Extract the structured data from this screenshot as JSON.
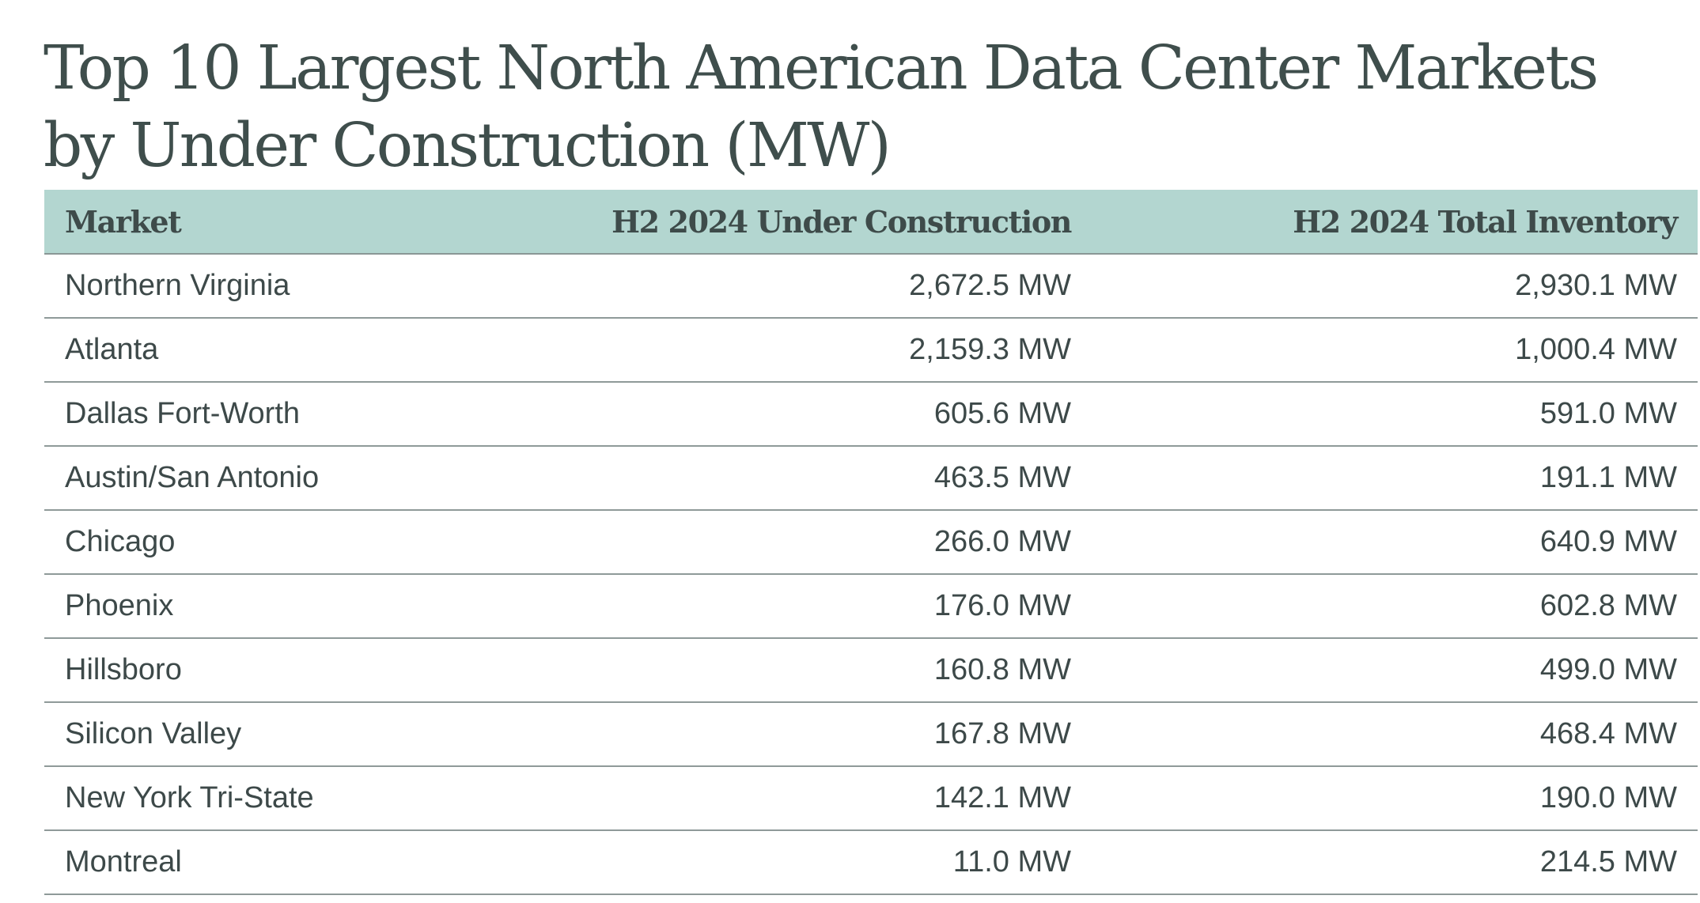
{
  "chart_data": {
    "type": "table",
    "title_lines": [
      "Top 10 Largest North American Data Center Markets",
      "by Under Construction (MW)"
    ],
    "columns": [
      "Market",
      "H2 2024 Under Construction",
      "H2 2024 Total Inventory"
    ],
    "rows": [
      {
        "market": "Northern Virginia",
        "under_construction": "2,672.5 MW",
        "total_inventory": "2,930.1 MW"
      },
      {
        "market": "Atlanta",
        "under_construction": "2,159.3 MW",
        "total_inventory": "1,000.4 MW"
      },
      {
        "market": "Dallas Fort-Worth",
        "under_construction": "605.6 MW",
        "total_inventory": "591.0 MW"
      },
      {
        "market": "Austin/San Antonio",
        "under_construction": "463.5 MW",
        "total_inventory": "191.1 MW"
      },
      {
        "market": "Chicago",
        "under_construction": "266.0 MW",
        "total_inventory": "640.9 MW"
      },
      {
        "market": "Phoenix",
        "under_construction": "176.0 MW",
        "total_inventory": "602.8 MW"
      },
      {
        "market": "Hillsboro",
        "under_construction": "160.8 MW",
        "total_inventory": "499.0 MW"
      },
      {
        "market": "Silicon Valley",
        "under_construction": "167.8 MW",
        "total_inventory": "468.4 MW"
      },
      {
        "market": "New York Tri-State",
        "under_construction": "142.1 MW",
        "total_inventory": "190.0 MW"
      },
      {
        "market": "Montreal",
        "under_construction": "11.0 MW",
        "total_inventory": "214.5 MW"
      }
    ],
    "colors": {
      "header_background": "#b3d6d0",
      "text": "#3d4a4a",
      "rule": "#8f9a99"
    }
  }
}
